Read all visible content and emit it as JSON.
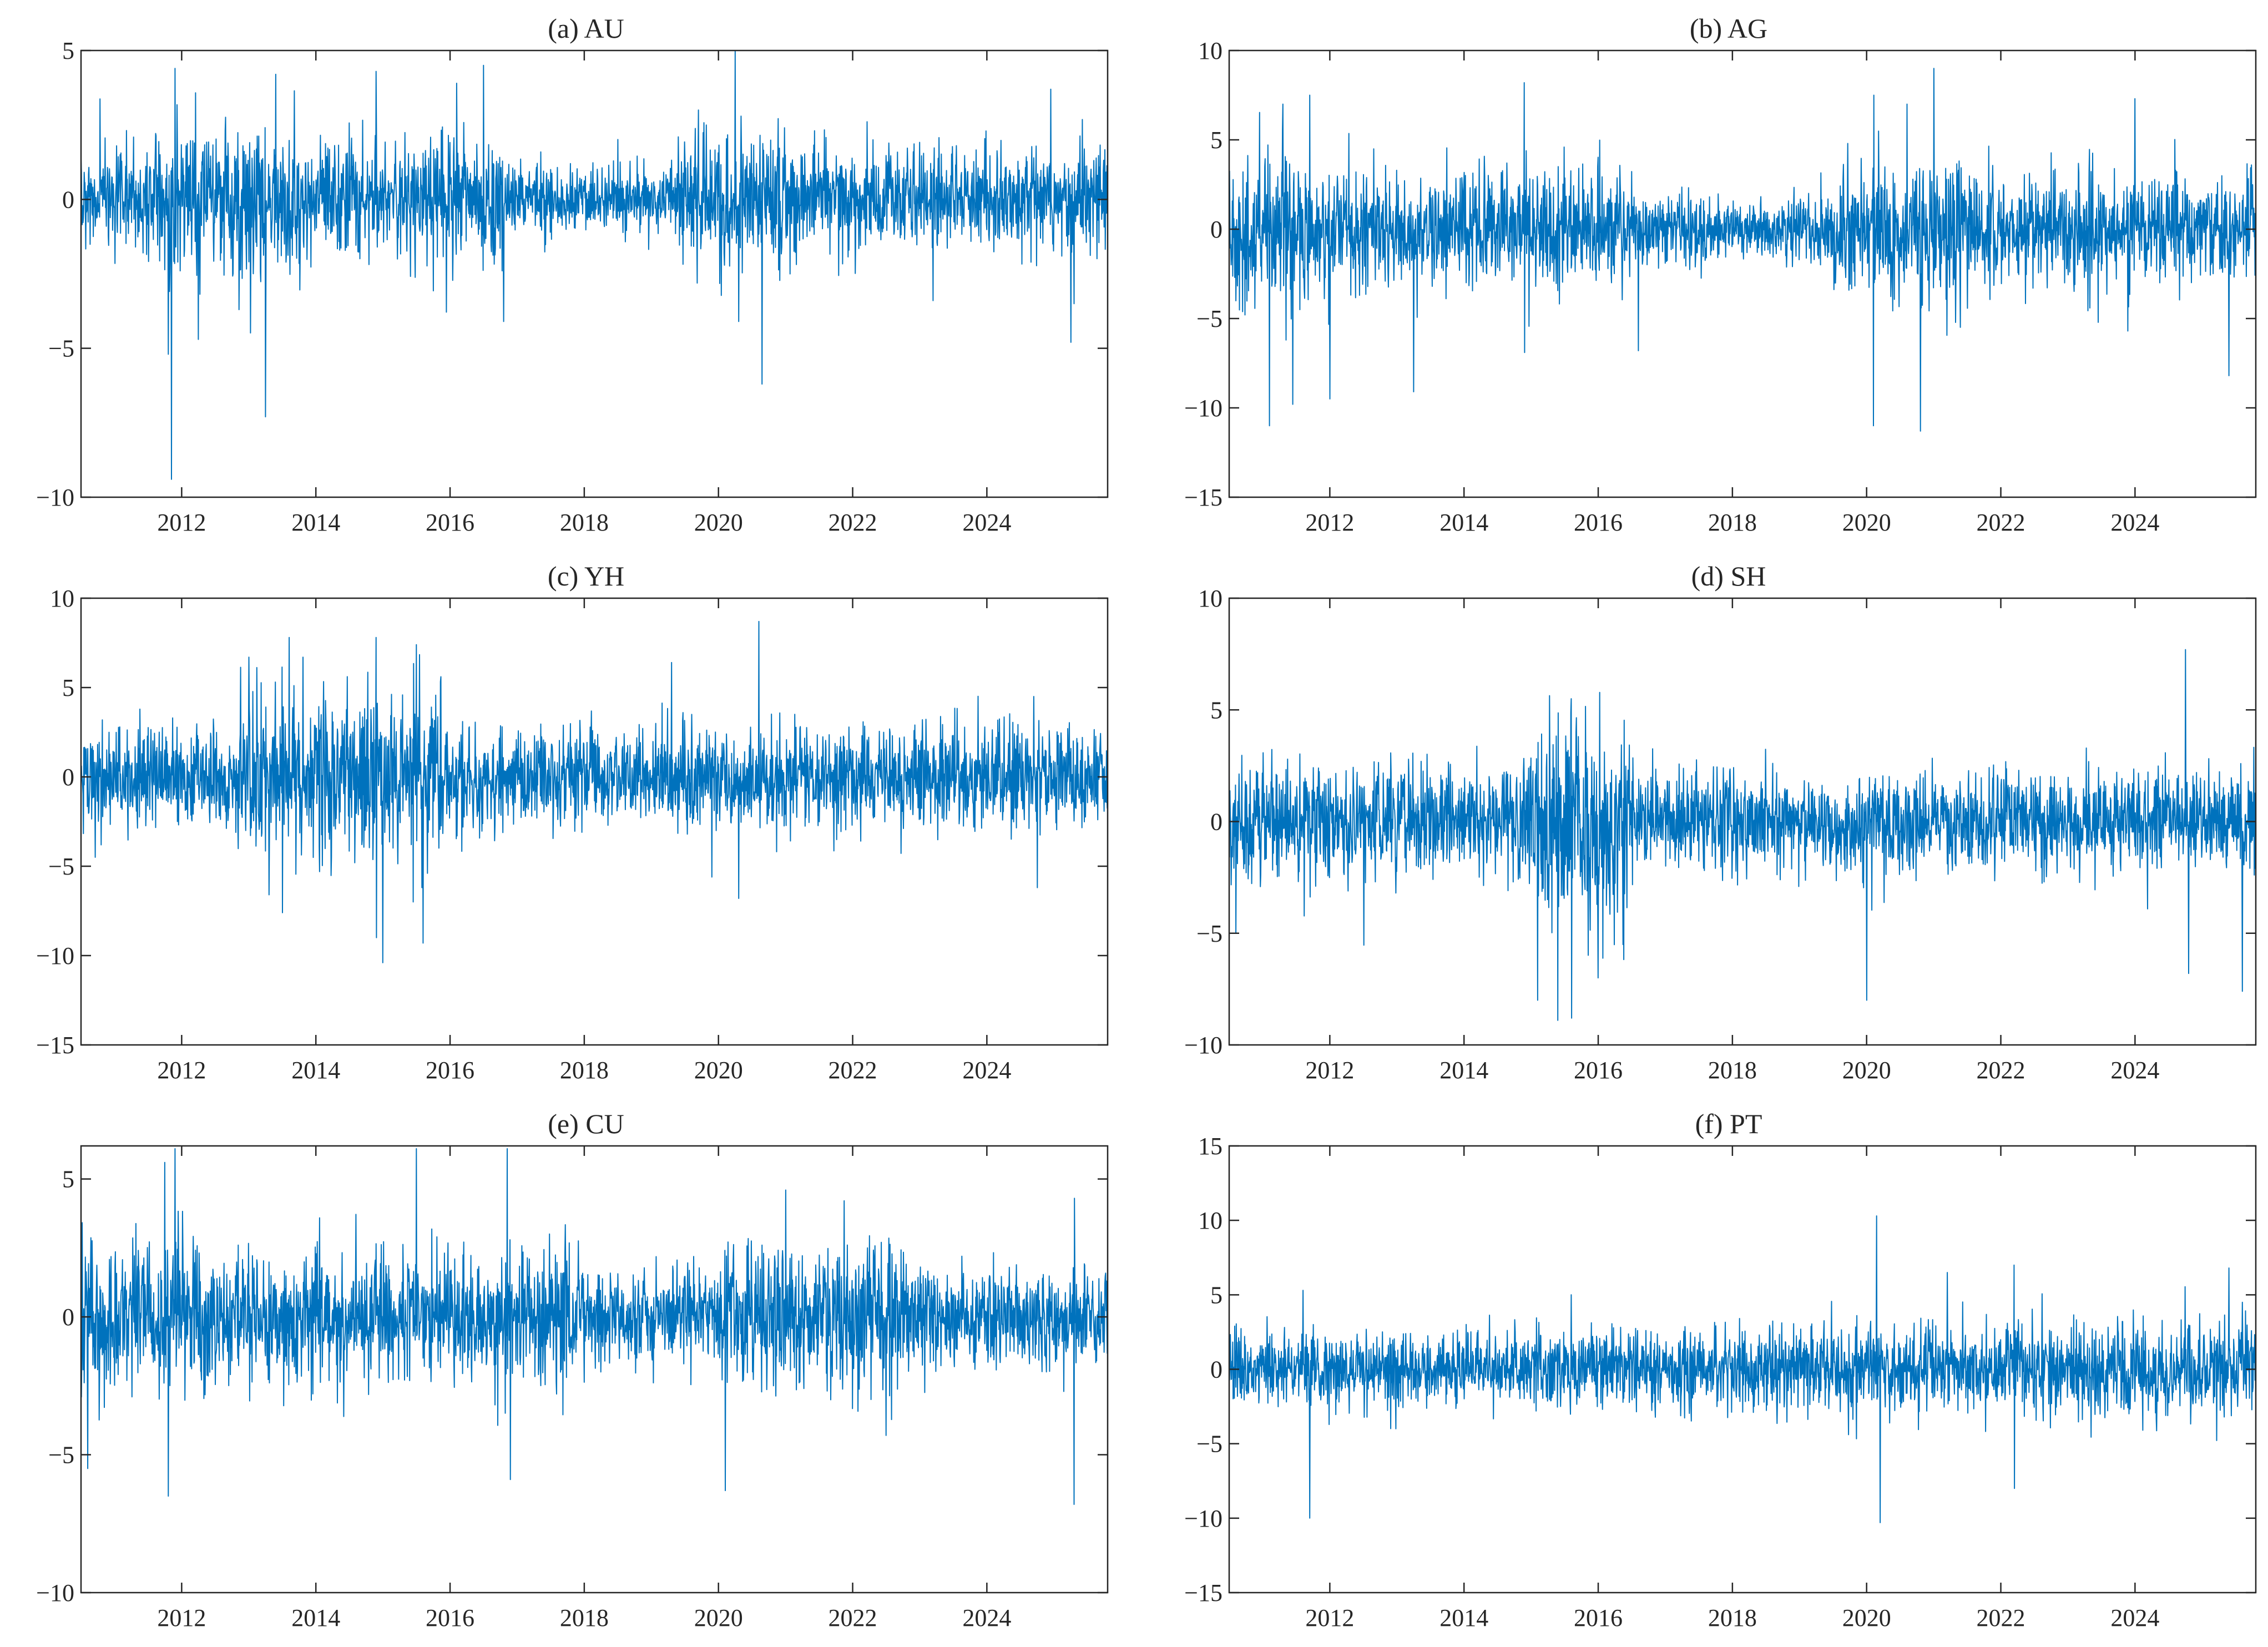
{
  "figure": {
    "series_color": "#0072BD",
    "axis_color": "#262626"
  },
  "chart_data": [
    {
      "type": "line",
      "title": "(a) AU",
      "xlabel": "",
      "ylabel": "",
      "xlim": [
        2010.5,
        2025.8
      ],
      "ylim": [
        -10,
        5
      ],
      "xticks": [
        2012,
        2014,
        2016,
        2018,
        2020,
        2022,
        2024
      ],
      "xtick_labels": [
        "2012",
        "2014",
        "2016",
        "2018",
        "2020",
        "2022",
        "2024"
      ],
      "yticks": [
        5,
        0,
        -5,
        -10
      ],
      "ytick_labels": [
        "5",
        "0",
        "−5",
        "−10"
      ],
      "grid": false,
      "legend": "none",
      "regimes": [
        {
          "x": [
            2010.5,
            2011.6
          ],
          "sd": 0.85
        },
        {
          "x": [
            2011.6,
            2013.9
          ],
          "sd": 1.3
        },
        {
          "x": [
            2013.9,
            2016.8
          ],
          "sd": 1.05
        },
        {
          "x": [
            2016.8,
            2019.4
          ],
          "sd": 0.55
        },
        {
          "x": [
            2019.4,
            2021.2
          ],
          "sd": 1.15
        },
        {
          "x": [
            2021.2,
            2025.8
          ],
          "sd": 0.85
        }
      ],
      "spikes": [
        {
          "x": 2011.85,
          "y": -9.4
        },
        {
          "x": 2011.8,
          "y": -5.2
        },
        {
          "x": 2011.9,
          "y": 4.4
        },
        {
          "x": 2012.25,
          "y": -4.7
        },
        {
          "x": 2013.25,
          "y": -7.3
        },
        {
          "x": 2013.4,
          "y": 4.2
        },
        {
          "x": 2014.9,
          "y": 4.3
        },
        {
          "x": 2016.1,
          "y": 3.9
        },
        {
          "x": 2016.5,
          "y": 4.5
        },
        {
          "x": 2016.8,
          "y": -4.1
        },
        {
          "x": 2019.7,
          "y": 3.0
        },
        {
          "x": 2020.25,
          "y": 5.0
        },
        {
          "x": 2020.3,
          "y": -4.1
        },
        {
          "x": 2020.65,
          "y": -6.2
        },
        {
          "x": 2023.2,
          "y": -3.4
        },
        {
          "x": 2024.95,
          "y": 3.7
        },
        {
          "x": 2025.25,
          "y": -4.8
        },
        {
          "x": 2025.3,
          "y": -3.5
        }
      ]
    },
    {
      "type": "line",
      "title": "(b) AG",
      "xlabel": "",
      "ylabel": "",
      "xlim": [
        2010.5,
        2025.8
      ],
      "ylim": [
        -15,
        10
      ],
      "xticks": [
        2012,
        2014,
        2016,
        2018,
        2020,
        2022,
        2024
      ],
      "xtick_labels": [
        "2012",
        "2014",
        "2016",
        "2018",
        "2020",
        "2022",
        "2024"
      ],
      "yticks": [
        10,
        5,
        0,
        -5,
        -10,
        -15
      ],
      "ytick_labels": [
        "10",
        "5",
        "0",
        "−5",
        "−10",
        "−15"
      ],
      "grid": false,
      "legend": "none",
      "regimes": [
        {
          "x": [
            2010.5,
            2012.0
          ],
          "sd": 2.1
        },
        {
          "x": [
            2012.0,
            2016.5
          ],
          "sd": 1.6
        },
        {
          "x": [
            2016.5,
            2019.5
          ],
          "sd": 0.9
        },
        {
          "x": [
            2019.5,
            2021.5
          ],
          "sd": 2.1
        },
        {
          "x": [
            2021.5,
            2025.8
          ],
          "sd": 1.5
        }
      ],
      "spikes": [
        {
          "x": 2011.1,
          "y": -11.0
        },
        {
          "x": 2011.45,
          "y": -9.8
        },
        {
          "x": 2011.3,
          "y": 7.0
        },
        {
          "x": 2011.7,
          "y": 7.5
        },
        {
          "x": 2012.0,
          "y": -9.5
        },
        {
          "x": 2013.25,
          "y": -9.1
        },
        {
          "x": 2014.9,
          "y": 8.2
        },
        {
          "x": 2014.9,
          "y": -6.9
        },
        {
          "x": 2016.6,
          "y": -6.8
        },
        {
          "x": 2020.1,
          "y": -11.0
        },
        {
          "x": 2020.1,
          "y": 7.5
        },
        {
          "x": 2020.8,
          "y": -11.3
        },
        {
          "x": 2021.0,
          "y": 9.0
        },
        {
          "x": 2020.6,
          "y": 7.0
        },
        {
          "x": 2024.0,
          "y": 7.3
        },
        {
          "x": 2025.4,
          "y": -8.2
        }
      ]
    },
    {
      "type": "line",
      "title": "(c) YH",
      "xlabel": "",
      "ylabel": "",
      "xlim": [
        2010.5,
        2025.8
      ],
      "ylim": [
        -15,
        10
      ],
      "xticks": [
        2012,
        2014,
        2016,
        2018,
        2020,
        2022,
        2024
      ],
      "xtick_labels": [
        "2012",
        "2014",
        "2016",
        "2018",
        "2020",
        "2022",
        "2024"
      ],
      "yticks": [
        10,
        5,
        0,
        -5,
        -10,
        -15
      ],
      "ytick_labels": [
        "10",
        "5",
        "0",
        "−5",
        "−10",
        "−15"
      ],
      "grid": false,
      "legend": "none",
      "regimes": [
        {
          "x": [
            2010.5,
            2012.8
          ],
          "sd": 1.4
        },
        {
          "x": [
            2012.8,
            2015.9
          ],
          "sd": 2.3
        },
        {
          "x": [
            2015.9,
            2025.8
          ],
          "sd": 1.35
        }
      ],
      "spikes": [
        {
          "x": 2013.0,
          "y": 6.7
        },
        {
          "x": 2013.6,
          "y": 7.8
        },
        {
          "x": 2013.5,
          "y": -7.6
        },
        {
          "x": 2013.3,
          "y": -6.6
        },
        {
          "x": 2014.9,
          "y": 7.8
        },
        {
          "x": 2014.9,
          "y": -9.0
        },
        {
          "x": 2015.0,
          "y": -10.4
        },
        {
          "x": 2015.5,
          "y": 7.4
        },
        {
          "x": 2015.6,
          "y": -9.3
        },
        {
          "x": 2015.45,
          "y": -7.0
        },
        {
          "x": 2019.3,
          "y": 6.4
        },
        {
          "x": 2020.3,
          "y": -6.8
        },
        {
          "x": 2020.6,
          "y": 8.7
        },
        {
          "x": 2024.7,
          "y": 4.5
        },
        {
          "x": 2024.75,
          "y": -6.2
        }
      ]
    },
    {
      "type": "line",
      "title": "(d) SH",
      "xlabel": "",
      "ylabel": "",
      "xlim": [
        2010.5,
        2025.8
      ],
      "ylim": [
        -10,
        10
      ],
      "xticks": [
        2012,
        2014,
        2016,
        2018,
        2020,
        2022,
        2024
      ],
      "xtick_labels": [
        "2012",
        "2014",
        "2016",
        "2018",
        "2020",
        "2022",
        "2024"
      ],
      "yticks": [
        10,
        5,
        0,
        -5,
        -10
      ],
      "ytick_labels": [
        "10",
        "5",
        "0",
        "−5",
        "−10"
      ],
      "grid": false,
      "legend": "none",
      "regimes": [
        {
          "x": [
            2010.5,
            2014.8
          ],
          "sd": 1.25
        },
        {
          "x": [
            2014.8,
            2016.6
          ],
          "sd": 2.2
        },
        {
          "x": [
            2016.6,
            2025.8
          ],
          "sd": 1.1
        }
      ],
      "spikes": [
        {
          "x": 2010.6,
          "y": -5.0
        },
        {
          "x": 2015.6,
          "y": 5.5
        },
        {
          "x": 2015.4,
          "y": -8.9
        },
        {
          "x": 2015.6,
          "y": -8.8
        },
        {
          "x": 2015.1,
          "y": -8.0
        },
        {
          "x": 2016.0,
          "y": -7.0
        },
        {
          "x": 2020.0,
          "y": -8.0
        },
        {
          "x": 2024.75,
          "y": 7.7
        },
        {
          "x": 2024.8,
          "y": -6.8
        },
        {
          "x": 2025.6,
          "y": -7.6
        }
      ]
    },
    {
      "type": "line",
      "title": "(e) CU",
      "xlabel": "",
      "ylabel": "",
      "xlim": [
        2010.5,
        2025.8
      ],
      "ylim": [
        -10,
        6.2
      ],
      "xticks": [
        2012,
        2014,
        2016,
        2018,
        2020,
        2022,
        2024
      ],
      "xtick_labels": [
        "2012",
        "2014",
        "2016",
        "2018",
        "2020",
        "2022",
        "2024"
      ],
      "yticks": [
        5,
        0,
        -5,
        -10
      ],
      "ytick_labels": [
        "5",
        "0",
        "−5",
        "−10"
      ],
      "grid": false,
      "legend": "none",
      "regimes": [
        {
          "x": [
            2010.5,
            2012.3
          ],
          "sd": 1.55
        },
        {
          "x": [
            2012.3,
            2018.0
          ],
          "sd": 1.2
        },
        {
          "x": [
            2018.0,
            2020.0
          ],
          "sd": 0.85
        },
        {
          "x": [
            2020.0,
            2022.8
          ],
          "sd": 1.35
        },
        {
          "x": [
            2022.8,
            2025.8
          ],
          "sd": 0.9
        }
      ],
      "spikes": [
        {
          "x": 2010.6,
          "y": -5.5
        },
        {
          "x": 2011.8,
          "y": -6.5
        },
        {
          "x": 2011.9,
          "y": 6.1
        },
        {
          "x": 2011.75,
          "y": 5.6
        },
        {
          "x": 2015.5,
          "y": 6.1
        },
        {
          "x": 2016.85,
          "y": 6.1
        },
        {
          "x": 2016.9,
          "y": -5.9
        },
        {
          "x": 2020.1,
          "y": -6.3
        },
        {
          "x": 2021.0,
          "y": 4.6
        },
        {
          "x": 2022.5,
          "y": -4.3
        },
        {
          "x": 2025.3,
          "y": -6.8
        },
        {
          "x": 2025.3,
          "y": 4.3
        }
      ]
    },
    {
      "type": "line",
      "title": "(f) PT",
      "xlabel": "",
      "ylabel": "",
      "xlim": [
        2010.5,
        2025.8
      ],
      "ylim": [
        -15,
        15
      ],
      "xticks": [
        2012,
        2014,
        2016,
        2018,
        2020,
        2022,
        2024
      ],
      "xtick_labels": [
        "2012",
        "2014",
        "2016",
        "2018",
        "2020",
        "2022",
        "2024"
      ],
      "yticks": [
        15,
        10,
        5,
        0,
        -5,
        -10,
        -15
      ],
      "ytick_labels": [
        "15",
        "10",
        "5",
        "0",
        "−5",
        "−10",
        "−15"
      ],
      "grid": false,
      "legend": "none",
      "regimes": [
        {
          "x": [
            2010.5,
            2015.0
          ],
          "sd": 1.2
        },
        {
          "x": [
            2015.0,
            2018.5
          ],
          "sd": 1.3
        },
        {
          "x": [
            2018.5,
            2025.8
          ],
          "sd": 1.55
        }
      ],
      "spikes": [
        {
          "x": 2011.7,
          "y": -10.0
        },
        {
          "x": 2011.6,
          "y": 5.3
        },
        {
          "x": 2015.6,
          "y": 5.0
        },
        {
          "x": 2020.15,
          "y": 10.3
        },
        {
          "x": 2020.2,
          "y": -10.3
        },
        {
          "x": 2021.2,
          "y": 6.5
        },
        {
          "x": 2022.2,
          "y": 7.0
        },
        {
          "x": 2022.2,
          "y": -8.0
        },
        {
          "x": 2025.4,
          "y": 6.8
        },
        {
          "x": 2025.6,
          "y": 4.5
        }
      ]
    }
  ]
}
